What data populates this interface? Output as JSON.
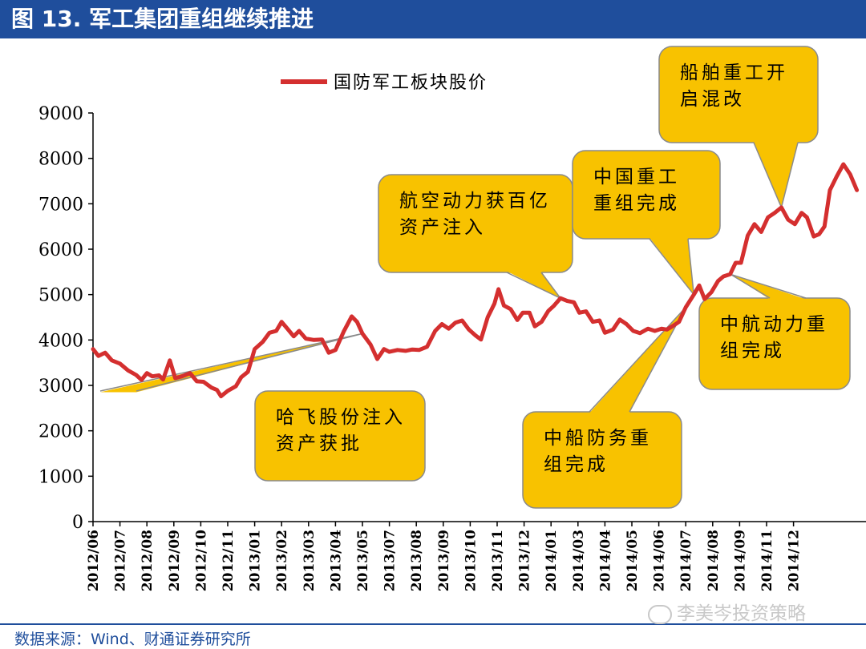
{
  "header": {
    "title": "图 13. 军工集团重组继续推进"
  },
  "footer": {
    "source": "数据来源：Wind、财通证券研究所",
    "watermark": "李美岑投资策略"
  },
  "colors": {
    "line": "#d42f2f",
    "callout_fill": "#f8c200",
    "callout_stroke": "#8a8a8a",
    "title_bg": "#1f4e9c"
  },
  "chart_data": {
    "type": "line",
    "title": "",
    "xlabel": "",
    "ylabel": "",
    "ylim": [
      0,
      9000
    ],
    "yticks": [
      0,
      1000,
      2000,
      3000,
      4000,
      5000,
      6000,
      7000,
      8000,
      9000
    ],
    "xlim": [
      0,
      31.4
    ],
    "xticks": [
      {
        "label": "2012/06",
        "x": 0
      },
      {
        "label": "2012/07",
        "x": 1
      },
      {
        "label": "2012/08",
        "x": 2
      },
      {
        "label": "2012/09",
        "x": 3
      },
      {
        "label": "2012/10",
        "x": 4
      },
      {
        "label": "2012/11",
        "x": 5
      },
      {
        "label": "2013/01",
        "x": 6
      },
      {
        "label": "2013/02",
        "x": 7
      },
      {
        "label": "2013/03",
        "x": 8
      },
      {
        "label": "2013/04",
        "x": 9
      },
      {
        "label": "2013/05",
        "x": 10
      },
      {
        "label": "2013/07",
        "x": 11
      },
      {
        "label": "2013/08",
        "x": 12
      },
      {
        "label": "2013/09",
        "x": 13
      },
      {
        "label": "2013/10",
        "x": 14
      },
      {
        "label": "2013/11",
        "x": 15
      },
      {
        "label": "2013/12",
        "x": 16
      },
      {
        "label": "2014/01",
        "x": 17
      },
      {
        "label": "2014/03",
        "x": 18
      },
      {
        "label": "2014/04",
        "x": 19
      },
      {
        "label": "2014/05",
        "x": 20
      },
      {
        "label": "2014/06",
        "x": 21
      },
      {
        "label": "2014/07",
        "x": 22
      },
      {
        "label": "2014/08",
        "x": 23
      },
      {
        "label": "2014/09",
        "x": 24
      },
      {
        "label": "2014/11",
        "x": 25
      },
      {
        "label": "2014/12",
        "x": 26
      }
    ],
    "series": [
      {
        "name": "国防军工板块股价",
        "points": [
          [
            0.0,
            3800
          ],
          [
            0.2,
            3650
          ],
          [
            0.45,
            3720
          ],
          [
            0.7,
            3550
          ],
          [
            1.0,
            3480
          ],
          [
            1.3,
            3330
          ],
          [
            1.6,
            3230
          ],
          [
            1.8,
            3120
          ],
          [
            2.0,
            3270
          ],
          [
            2.2,
            3200
          ],
          [
            2.45,
            3220
          ],
          [
            2.6,
            3130
          ],
          [
            2.85,
            3550
          ],
          [
            3.05,
            3160
          ],
          [
            3.3,
            3200
          ],
          [
            3.6,
            3270
          ],
          [
            3.85,
            3090
          ],
          [
            4.1,
            3080
          ],
          [
            4.4,
            2950
          ],
          [
            4.6,
            2900
          ],
          [
            4.75,
            2760
          ],
          [
            5.0,
            2880
          ],
          [
            5.3,
            2980
          ],
          [
            5.5,
            3180
          ],
          [
            5.75,
            3300
          ],
          [
            6.0,
            3800
          ],
          [
            6.3,
            3960
          ],
          [
            6.55,
            4160
          ],
          [
            6.8,
            4200
          ],
          [
            7.0,
            4400
          ],
          [
            7.2,
            4260
          ],
          [
            7.45,
            4080
          ],
          [
            7.65,
            4200
          ],
          [
            7.9,
            4030
          ],
          [
            8.2,
            4000
          ],
          [
            8.5,
            4010
          ],
          [
            8.75,
            3720
          ],
          [
            9.0,
            3780
          ],
          [
            9.3,
            4180
          ],
          [
            9.6,
            4520
          ],
          [
            9.8,
            4400
          ],
          [
            10.0,
            4140
          ],
          [
            10.3,
            3900
          ],
          [
            10.55,
            3580
          ],
          [
            10.8,
            3800
          ],
          [
            11.0,
            3740
          ],
          [
            11.3,
            3780
          ],
          [
            11.6,
            3760
          ],
          [
            11.85,
            3790
          ],
          [
            12.1,
            3780
          ],
          [
            12.4,
            3850
          ],
          [
            12.7,
            4200
          ],
          [
            12.95,
            4350
          ],
          [
            13.2,
            4250
          ],
          [
            13.45,
            4380
          ],
          [
            13.7,
            4430
          ],
          [
            13.95,
            4230
          ],
          [
            14.2,
            4100
          ],
          [
            14.4,
            4010
          ],
          [
            14.65,
            4500
          ],
          [
            14.9,
            4800
          ],
          [
            15.05,
            5120
          ],
          [
            15.25,
            4760
          ],
          [
            15.5,
            4680
          ],
          [
            15.75,
            4440
          ],
          [
            15.95,
            4600
          ],
          [
            16.2,
            4600
          ],
          [
            16.4,
            4300
          ],
          [
            16.65,
            4400
          ],
          [
            16.9,
            4640
          ],
          [
            17.1,
            4750
          ],
          [
            17.35,
            4920
          ],
          [
            17.6,
            4860
          ],
          [
            17.85,
            4830
          ],
          [
            18.05,
            4600
          ],
          [
            18.3,
            4630
          ],
          [
            18.55,
            4400
          ],
          [
            18.8,
            4430
          ],
          [
            19.0,
            4160
          ],
          [
            19.3,
            4230
          ],
          [
            19.55,
            4450
          ],
          [
            19.8,
            4350
          ],
          [
            20.05,
            4200
          ],
          [
            20.3,
            4150
          ],
          [
            20.6,
            4250
          ],
          [
            20.85,
            4200
          ],
          [
            21.1,
            4250
          ],
          [
            21.3,
            4230
          ],
          [
            21.5,
            4300
          ],
          [
            21.75,
            4400
          ],
          [
            22.0,
            4720
          ],
          [
            22.3,
            5000
          ],
          [
            22.5,
            5200
          ],
          [
            22.7,
            4900
          ],
          [
            22.95,
            5050
          ],
          [
            23.2,
            5300
          ],
          [
            23.4,
            5400
          ],
          [
            23.65,
            5450
          ],
          [
            23.85,
            5700
          ],
          [
            24.05,
            5700
          ],
          [
            24.3,
            6300
          ],
          [
            24.55,
            6550
          ],
          [
            24.8,
            6380
          ],
          [
            25.05,
            6700
          ],
          [
            25.3,
            6800
          ],
          [
            25.55,
            6920
          ],
          [
            25.8,
            6650
          ],
          [
            26.05,
            6550
          ],
          [
            26.3,
            6800
          ],
          [
            26.5,
            6700
          ],
          [
            26.75,
            6280
          ],
          [
            26.95,
            6330
          ],
          [
            27.15,
            6500
          ],
          [
            27.35,
            7300
          ],
          [
            27.6,
            7600
          ],
          [
            27.85,
            7870
          ],
          [
            28.1,
            7650
          ],
          [
            28.35,
            7300
          ]
        ]
      }
    ],
    "annotations": [
      {
        "id": "hafei",
        "lines": [
          "哈飞股份注入",
          "资产获批"
        ],
        "point_x": 10.0,
        "point_y": 4140
      },
      {
        "id": "hangkong",
        "lines": [
          "航空动力获百亿",
          "资产注入"
        ],
        "point_x": 17.35,
        "point_y": 4920
      },
      {
        "id": "zhongchuan",
        "lines": [
          "中船防务重",
          "组完成"
        ],
        "point_x": 22.0,
        "point_y": 4720
      },
      {
        "id": "zhongguozhonggong",
        "lines": [
          "中国重工",
          "重组完成"
        ],
        "point_x": 22.3,
        "point_y": 5000
      },
      {
        "id": "zhonghang",
        "lines": [
          "中航动力重",
          "组完成"
        ],
        "point_x": 23.65,
        "point_y": 5450
      },
      {
        "id": "chuanbo",
        "lines": [
          "船舶重工开",
          "启混改"
        ],
        "point_x": 25.55,
        "point_y": 6920
      }
    ]
  }
}
